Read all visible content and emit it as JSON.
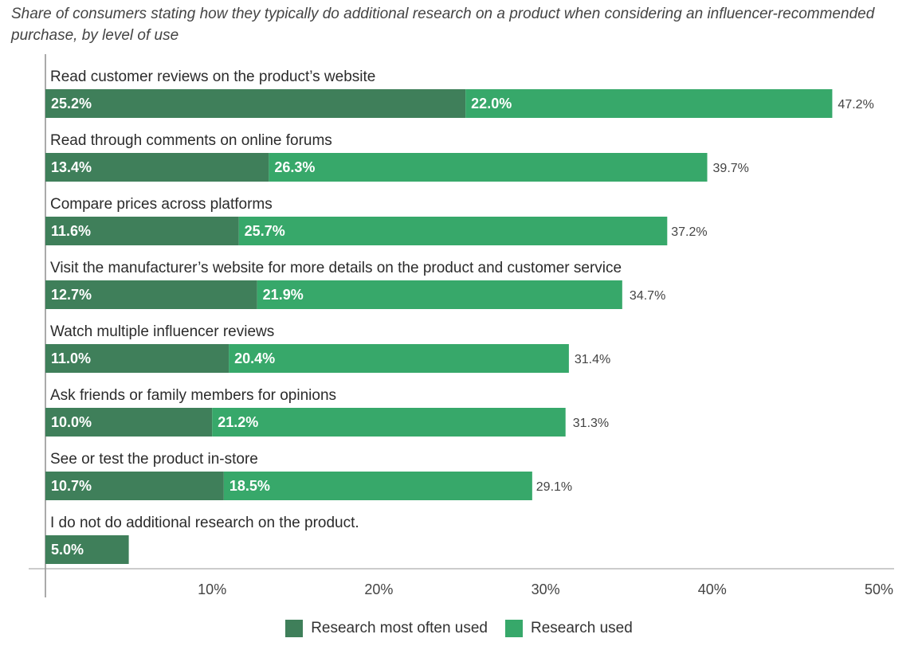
{
  "subtitle": "Share of consumers stating how they typically do additional research on a product when considering an influencer-recommended purchase, by level of use",
  "chart_data": {
    "type": "bar",
    "orientation": "horizontal",
    "stacked": true,
    "categories": [
      "Read customer reviews on the product’s website",
      "Read through comments on online forums",
      "Compare prices across platforms",
      "Visit the manufacturer’s website for more details on the product and customer service",
      "Watch multiple influencer reviews",
      "Ask friends or family members for opinions",
      "See or test the product in-store",
      "I do not do additional research on the product."
    ],
    "series": [
      {
        "name": "Research most often used",
        "color": "#3f7f5a",
        "values": [
          25.2,
          13.4,
          11.6,
          12.7,
          11.0,
          10.0,
          10.7,
          5.0
        ],
        "labels": [
          "25.2%",
          "13.4%",
          "11.6%",
          "12.7%",
          "11.0%",
          "10.0%",
          "10.7%",
          "5.0%"
        ]
      },
      {
        "name": "Research used",
        "color": "#37a86a",
        "values": [
          22.0,
          26.3,
          25.7,
          21.9,
          20.4,
          21.2,
          18.5,
          null
        ],
        "labels": [
          "22.0%",
          "26.3%",
          "25.7%",
          "21.9%",
          "20.4%",
          "21.2%",
          "18.5%",
          ""
        ]
      }
    ],
    "totals": [
      "47.2%",
      "39.7%",
      "37.2%",
      "34.7%",
      "31.4%",
      "31.3%",
      "29.1%",
      ""
    ],
    "total_values": [
      47.2,
      39.7,
      37.2,
      34.7,
      31.4,
      31.3,
      29.1,
      null
    ],
    "xlim": [
      0,
      50
    ],
    "xticks": [
      10,
      20,
      30,
      40,
      50
    ],
    "xtick_labels": [
      "10%",
      "20%",
      "30%",
      "40%",
      "50%"
    ],
    "grid": false,
    "legend_position": "bottom"
  }
}
